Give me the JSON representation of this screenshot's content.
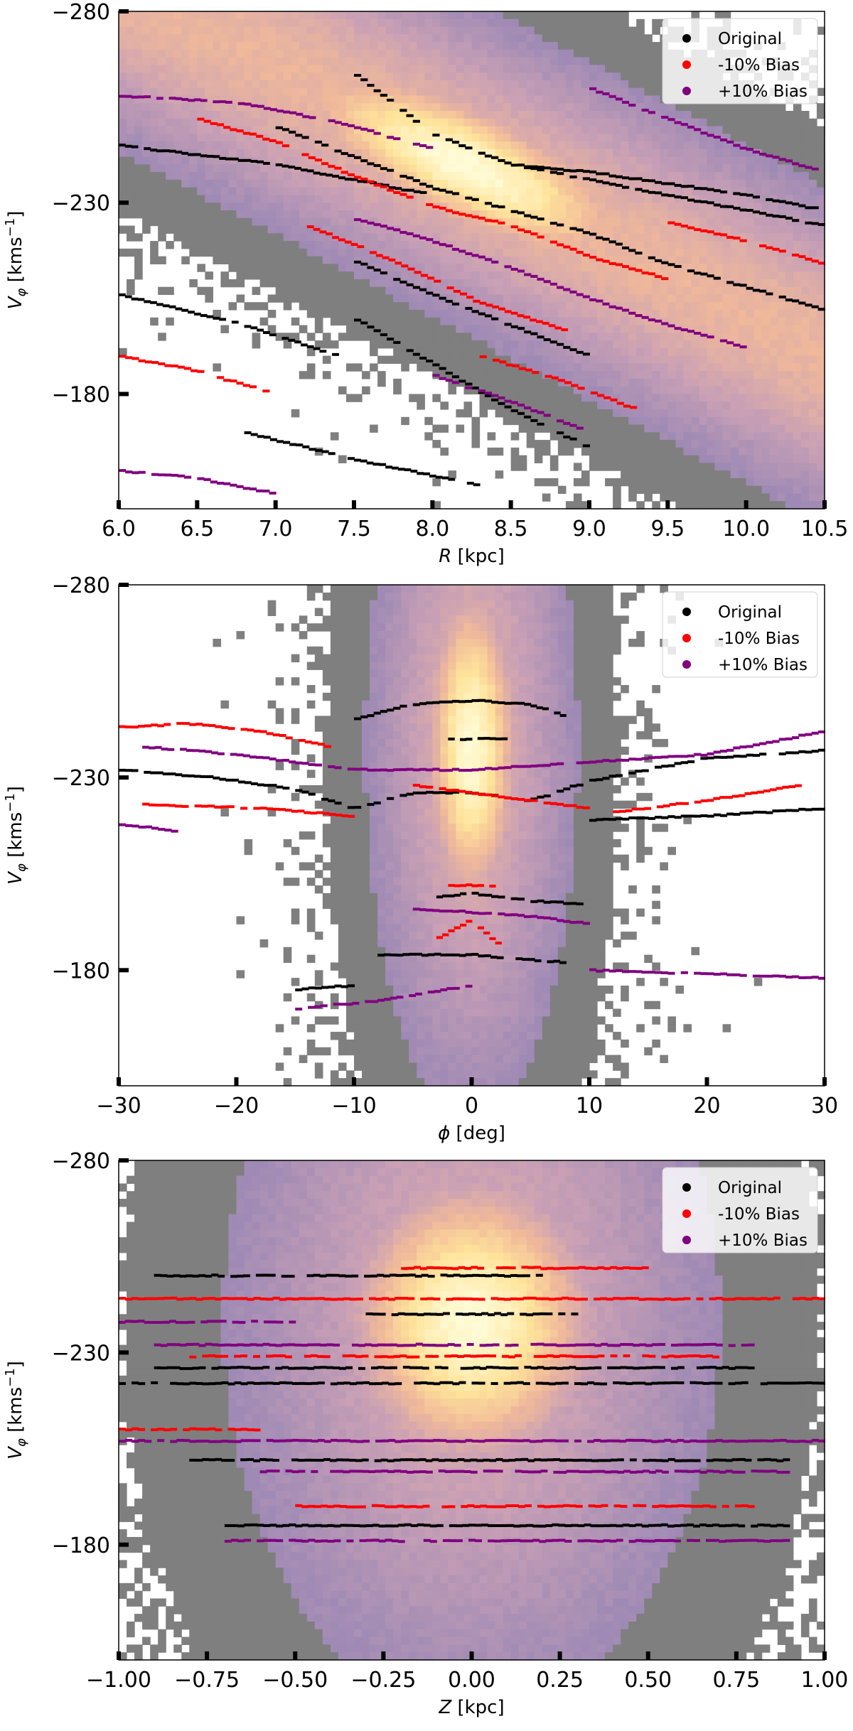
{
  "chart_data": [
    {
      "type": "heatmap",
      "xlabel_symbol": "R",
      "xlabel_unit": " [kpc]",
      "ylabel_symbol": "V",
      "ylabel_sub": "φ",
      "ylabel_unit_a": " [kms",
      "ylabel_sup": "−1",
      "ylabel_unit_b": "]",
      "xlim": [
        6.0,
        10.5
      ],
      "ylim": [
        -280,
        -150
      ],
      "y_inverted": true,
      "x_ticks": [
        6.0,
        6.5,
        7.0,
        7.5,
        8.0,
        8.5,
        9.0,
        9.5,
        10.0,
        10.5
      ],
      "x_tick_labels": [
        "6.0",
        "6.5",
        "7.0",
        "7.5",
        "8.0",
        "8.5",
        "9.0",
        "9.5",
        "10.0",
        "10.5"
      ],
      "y_ticks": [
        -280,
        -230,
        -180
      ],
      "y_tick_labels": [
        "−280",
        "−230",
        "−180"
      ],
      "density_peak": {
        "x": 8.2,
        "y": -240
      },
      "density_ridge": "diagonal",
      "colormap": [
        "#7f7f7f",
        "#9e8ab5",
        "#c9a0b5",
        "#f0b99a",
        "#ffe39a",
        "#fffbd6"
      ],
      "legend": {
        "position": "top-right",
        "entries": [
          {
            "label": "Original",
            "color": "#000000"
          },
          {
            "label": "-10% Bias",
            "color": "#ff0000"
          },
          {
            "label": "+10% Bias",
            "color": "#800080"
          }
        ]
      },
      "series": [
        {
          "color": "#000000",
          "ridges": [
            {
              "x": [
                7.5,
                8.0,
                8.5,
                9.0,
                9.5,
                10.0,
                10.5
              ],
              "y": [
                -264,
                -248,
                -240,
                -236,
                -232,
                -228,
                -224
              ]
            },
            {
              "x": [
                7.0,
                7.5,
                8.0,
                8.5,
                9.0,
                9.5,
                10.0,
                10.5
              ],
              "y": [
                -250,
                -242,
                -234,
                -228,
                -222,
                -214,
                -208,
                -202
              ]
            },
            {
              "x": [
                8.5,
                9.0,
                9.5,
                10.0,
                10.5
              ],
              "y": [
                -240,
                -238,
                -235,
                -232,
                -228
              ]
            },
            {
              "x": [
                7.5,
                8.0,
                8.5,
                9.0
              ],
              "y": [
                -215,
                -206,
                -198,
                -190
              ]
            },
            {
              "x": [
                7.5,
                8.0,
                8.5,
                9.0
              ],
              "y": [
                -200,
                -188,
                -176,
                -166
              ]
            },
            {
              "x": [
                6.0,
                7.0,
                8.0
              ],
              "y": [
                -245,
                -240,
                -232
              ]
            },
            {
              "x": [
                6.0,
                6.8,
                7.4
              ],
              "y": [
                -206,
                -198,
                -190
              ]
            },
            {
              "x": [
                6.8,
                7.5,
                8.3
              ],
              "y": [
                -170,
                -163,
                -156
              ]
            }
          ]
        },
        {
          "color": "#ff0000",
          "ridges": [
            {
              "x": [
                6.5,
                7.0,
                7.5,
                8.0,
                8.5,
                9.0,
                9.5
              ],
              "y": [
                -252,
                -246,
                -237,
                -229,
                -224,
                -216,
                -210
              ]
            },
            {
              "x": [
                7.2,
                7.8,
                8.3,
                8.9
              ],
              "y": [
                -224,
                -214,
                -204,
                -196
              ]
            },
            {
              "x": [
                6.0,
                6.5,
                7.0
              ],
              "y": [
                -190,
                -186,
                -180
              ]
            },
            {
              "x": [
                8.3,
                8.8,
                9.3
              ],
              "y": [
                -190,
                -184,
                -176
              ]
            },
            {
              "x": [
                9.5,
                10.0,
                10.5
              ],
              "y": [
                -225,
                -220,
                -214
              ]
            }
          ]
        },
        {
          "color": "#800080",
          "ridges": [
            {
              "x": [
                6.0,
                6.8,
                7.5,
                8.0
              ],
              "y": [
                -258,
                -256,
                -250,
                -244
              ]
            },
            {
              "x": [
                7.5,
                8.0,
                8.5,
                9.0,
                9.5,
                10.0
              ],
              "y": [
                -226,
                -220,
                -213,
                -205,
                -198,
                -192
              ]
            },
            {
              "x": [
                8.0,
                8.5,
                9.0
              ],
              "y": [
                -185,
                -178,
                -170
              ]
            },
            {
              "x": [
                9.0,
                9.5,
                10.0,
                10.5
              ],
              "y": [
                -260,
                -252,
                -244,
                -238
              ]
            },
            {
              "x": [
                6.0,
                6.5,
                7.0
              ],
              "y": [
                -160,
                -158,
                -154
              ]
            }
          ]
        }
      ]
    },
    {
      "type": "heatmap",
      "xlabel_symbol": "ϕ",
      "xlabel_unit": " [deg]",
      "ylabel_symbol": "V",
      "ylabel_sub": "φ",
      "ylabel_unit_a": " [kms",
      "ylabel_sup": "−1",
      "ylabel_unit_b": "]",
      "xlim": [
        -30,
        30
      ],
      "ylim": [
        -280,
        -150
      ],
      "y_inverted": true,
      "x_ticks": [
        -30,
        -20,
        -10,
        0,
        10,
        20,
        30
      ],
      "x_tick_labels": [
        "−30",
        "−20",
        "−10",
        "0",
        "10",
        "20",
        "30"
      ],
      "y_ticks": [
        -280,
        -230,
        -180
      ],
      "y_tick_labels": [
        "−280",
        "−230",
        "−180"
      ],
      "density_peak": {
        "x": 0,
        "y": -238
      },
      "density_ridge": "vertical",
      "colormap": [
        "#7f7f7f",
        "#9e8ab5",
        "#c9a0b5",
        "#f0b99a",
        "#ffe39a",
        "#fffbd6"
      ],
      "legend": {
        "position": "top-right",
        "entries": [
          {
            "label": "Original",
            "color": "#000000"
          },
          {
            "label": "-10% Bias",
            "color": "#ff0000"
          },
          {
            "label": "+10% Bias",
            "color": "#800080"
          }
        ]
      },
      "series": [
        {
          "color": "#000000",
          "ridges": [
            {
              "x": [
                -10,
                -5,
                0,
                5,
                8
              ],
              "y": [
                -245,
                -249,
                -250,
                -249,
                -246
              ]
            },
            {
              "x": [
                -2,
                0,
                3
              ],
              "y": [
                -240,
                -240,
                -240
              ]
            },
            {
              "x": [
                -30,
                -22,
                -15,
                -10,
                -5,
                0,
                5,
                10,
                15,
                20,
                30
              ],
              "y": [
                -232,
                -230,
                -227,
                -222,
                -226,
                -226,
                -224,
                -229,
                -232,
                -235,
                -237
              ]
            },
            {
              "x": [
                -3,
                0,
                5,
                10
              ],
              "y": [
                -199,
                -200,
                -198,
                -197
              ]
            },
            {
              "x": [
                -8,
                0,
                8
              ],
              "y": [
                -184,
                -184,
                -182
              ]
            },
            {
              "x": [
                10,
                20,
                30
              ],
              "y": [
                -219,
                -220,
                -222
              ]
            },
            {
              "x": [
                -15,
                -10
              ],
              "y": [
                -175,
                -176
              ]
            }
          ]
        },
        {
          "color": "#ff0000",
          "ridges": [
            {
              "x": [
                -30,
                -24,
                -18,
                -12
              ],
              "y": [
                -243,
                -244,
                -242,
                -238
              ]
            },
            {
              "x": [
                -28,
                -18,
                -10
              ],
              "y": [
                -223,
                -222,
                -220
              ]
            },
            {
              "x": [
                -5,
                0,
                5,
                10
              ],
              "y": [
                -228,
                -226,
                -224,
                -222
              ]
            },
            {
              "x": [
                -3,
                0,
                3
              ],
              "y": [
                -188,
                -193,
                -185
              ]
            },
            {
              "x": [
                12,
                20,
                28
              ],
              "y": [
                -221,
                -224,
                -228
              ]
            },
            {
              "x": [
                -2,
                0,
                2
              ],
              "y": [
                -202,
                -202,
                -202
              ]
            }
          ]
        },
        {
          "color": "#800080",
          "ridges": [
            {
              "x": [
                -28,
                -20,
                -10,
                0,
                10,
                20,
                30
              ],
              "y": [
                -238,
                -236,
                -232,
                -232,
                -234,
                -236,
                -242
              ]
            },
            {
              "x": [
                -5,
                0,
                5,
                10
              ],
              "y": [
                -196,
                -195,
                -194,
                -192
              ]
            },
            {
              "x": [
                -30,
                -25
              ],
              "y": [
                -218,
                -216
              ]
            },
            {
              "x": [
                -15,
                -8,
                0
              ],
              "y": [
                -170,
                -172,
                -176
              ]
            },
            {
              "x": [
                10,
                20,
                30
              ],
              "y": [
                -180,
                -179,
                -178
              ]
            }
          ]
        }
      ]
    },
    {
      "type": "heatmap",
      "xlabel_symbol": "Z",
      "xlabel_unit": " [kpc]",
      "ylabel_symbol": "V",
      "ylabel_sub": "φ",
      "ylabel_unit_a": " [kms",
      "ylabel_sup": "−1",
      "ylabel_unit_b": "]",
      "xlim": [
        -1.0,
        1.0
      ],
      "ylim": [
        -280,
        -150
      ],
      "y_inverted": true,
      "x_ticks": [
        -1.0,
        -0.75,
        -0.5,
        -0.25,
        0.0,
        0.25,
        0.5,
        0.75,
        1.0
      ],
      "x_tick_labels": [
        "−1.00",
        "−0.75",
        "−0.50",
        "−0.25",
        "0.00",
        "0.25",
        "0.50",
        "0.75",
        "1.00"
      ],
      "y_ticks": [
        -280,
        -230,
        -180
      ],
      "y_tick_labels": [
        "−280",
        "−230",
        "−180"
      ],
      "density_peak": {
        "x": 0.0,
        "y": -238
      },
      "density_ridge": "none",
      "colormap": [
        "#7f7f7f",
        "#9e8ab5",
        "#c9a0b5",
        "#f0b99a",
        "#ffe39a",
        "#fffbd6"
      ],
      "legend": {
        "position": "top-right",
        "entries": [
          {
            "label": "Original",
            "color": "#000000"
          },
          {
            "label": "-10% Bias",
            "color": "#ff0000"
          },
          {
            "label": "+10% Bias",
            "color": "#800080"
          }
        ]
      },
      "series": [
        {
          "color": "#000000",
          "ridges": [
            {
              "x": [
                -0.9,
                0.2
              ],
              "y": [
                -250,
                -250
              ]
            },
            {
              "x": [
                -0.3,
                0.3
              ],
              "y": [
                -240,
                -240
              ]
            },
            {
              "x": [
                -0.9,
                0.8
              ],
              "y": [
                -226,
                -226
              ]
            },
            {
              "x": [
                -0.8,
                0.9
              ],
              "y": [
                -202,
                -202
              ]
            },
            {
              "x": [
                -0.7,
                0.9
              ],
              "y": [
                -185,
                -185
              ]
            },
            {
              "x": [
                -1.0,
                1.0
              ],
              "y": [
                -222,
                -222
              ]
            }
          ]
        },
        {
          "color": "#ff0000",
          "ridges": [
            {
              "x": [
                -0.2,
                0.5
              ],
              "y": [
                -252,
                -252
              ]
            },
            {
              "x": [
                -0.8,
                0.7
              ],
              "y": [
                -229,
                -229
              ]
            },
            {
              "x": [
                -0.5,
                0.8
              ],
              "y": [
                -190,
                -190
              ]
            },
            {
              "x": [
                -1.0,
                1.0
              ],
              "y": [
                -244,
                -244
              ]
            },
            {
              "x": [
                -1.0,
                -0.6
              ],
              "y": [
                -210,
                -210
              ]
            }
          ]
        },
        {
          "color": "#800080",
          "ridges": [
            {
              "x": [
                -0.9,
                0.8
              ],
              "y": [
                -232,
                -232
              ]
            },
            {
              "x": [
                -0.6,
                0.9
              ],
              "y": [
                -199,
                -199
              ]
            },
            {
              "x": [
                -1.0,
                1.0
              ],
              "y": [
                -207,
                -207
              ]
            },
            {
              "x": [
                -0.7,
                0.9
              ],
              "y": [
                -181,
                -181
              ]
            },
            {
              "x": [
                -1.0,
                -0.5
              ],
              "y": [
                -238,
                -238
              ]
            }
          ]
        }
      ]
    }
  ]
}
